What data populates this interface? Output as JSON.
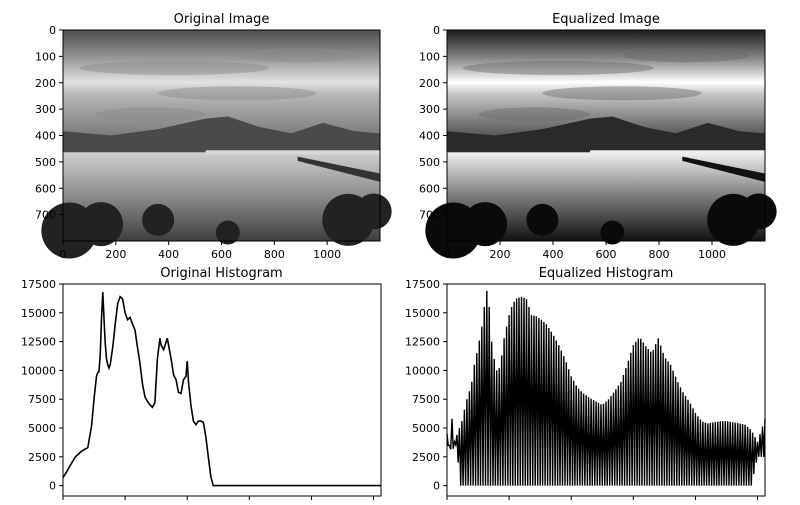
{
  "chart_data": [
    {
      "type": "image",
      "title": "Original Image",
      "xticks": [
        "0",
        "200",
        "400",
        "600",
        "800",
        "1000"
      ],
      "yticks": [
        "0",
        "100",
        "200",
        "300",
        "400",
        "500",
        "600",
        "700"
      ],
      "xlim": [
        0,
        1200
      ],
      "ylim": [
        800,
        0
      ],
      "image_style": "normal"
    },
    {
      "type": "image",
      "title": "Equalized Image",
      "xticks": [
        "0",
        "200",
        "400",
        "600",
        "800",
        "1000"
      ],
      "yticks": [
        "0",
        "100",
        "200",
        "300",
        "400",
        "500",
        "600",
        "700"
      ],
      "xlim": [
        0,
        1200
      ],
      "ylim": [
        800,
        0
      ],
      "image_style": "equalized"
    },
    {
      "type": "line",
      "title": "Original Histogram",
      "yticks": [
        "0",
        "2500",
        "5000",
        "7500",
        "10000",
        "12500",
        "15000",
        "17500"
      ],
      "xlim": [
        0,
        256
      ],
      "ylim": [
        -900,
        17500
      ],
      "x": [
        0,
        3,
        6,
        10,
        15,
        20,
        23,
        25,
        27,
        28,
        29,
        30,
        31,
        32,
        33,
        34,
        35,
        36,
        37,
        38,
        40,
        42,
        44,
        46,
        48,
        50,
        52,
        54,
        56,
        58,
        60,
        62,
        64,
        66,
        68,
        70,
        72,
        74,
        76,
        78,
        79,
        81,
        84,
        87,
        89,
        91,
        93,
        95,
        97,
        99,
        100,
        101,
        103,
        105,
        107,
        109,
        111,
        113,
        115,
        117,
        119,
        121,
        123,
        125,
        127,
        130,
        132,
        133,
        134,
        135,
        136,
        137,
        138,
        140,
        143,
        146,
        150,
        155,
        160,
        170,
        180,
        200,
        220,
        240,
        256
      ],
      "series": [
        {
          "values": [
            700,
            1200,
            1800,
            2500,
            3000,
            3300,
            5200,
            7600,
            9500,
            9800,
            9900,
            11500,
            14500,
            16800,
            14500,
            12400,
            11000,
            10500,
            10200,
            10500,
            12000,
            14000,
            15800,
            16400,
            16200,
            15000,
            14400,
            14600,
            14000,
            13500,
            12000,
            10600,
            8800,
            7700,
            7300,
            7000,
            6800,
            7200,
            11000,
            12800,
            12200,
            11800,
            12800,
            11000,
            9600,
            9200,
            8100,
            8000,
            9200,
            9500,
            10800,
            9000,
            7000,
            5600,
            5300,
            5600,
            5600,
            5500,
            4200,
            2500,
            800,
            0,
            0,
            0,
            0,
            0,
            0,
            0,
            0,
            0,
            0,
            0,
            0,
            0,
            0,
            0,
            0,
            0,
            0,
            0,
            0,
            0,
            0,
            0,
            0
          ]
        }
      ]
    },
    {
      "type": "line",
      "title": "Equalized Histogram",
      "yticks": [
        "0",
        "2500",
        "5000",
        "7500",
        "10000",
        "12500",
        "15000",
        "17500"
      ],
      "xlim": [
        0,
        256
      ],
      "ylim": [
        -900,
        17500
      ],
      "envelope": {
        "x": [
          0,
          2,
          4,
          6,
          8,
          10,
          12,
          14,
          16,
          18,
          20,
          22,
          24,
          26,
          28,
          30,
          32,
          34,
          36,
          38,
          40,
          42,
          44,
          46,
          48,
          50,
          52,
          55,
          60,
          64,
          68,
          72,
          76,
          80,
          85,
          90,
          95,
          100,
          105,
          110,
          115,
          120,
          125,
          130,
          135,
          140,
          145,
          150,
          155,
          160,
          165,
          170,
          175,
          180,
          185,
          190,
          195,
          200,
          205,
          210,
          215,
          220,
          225,
          230,
          235,
          240,
          245,
          250,
          256
        ],
        "peaks": [
          4500,
          3500,
          5800,
          3800,
          4400,
          5000,
          5600,
          6600,
          7500,
          8200,
          9000,
          10500,
          11500,
          12600,
          13800,
          15500,
          16900,
          15500,
          12500,
          11000,
          10000,
          10200,
          11300,
          12800,
          13800,
          14800,
          15500,
          16200,
          16400,
          16200,
          14800,
          14700,
          14400,
          14000,
          13200,
          12200,
          11000,
          9500,
          8500,
          8000,
          7600,
          7300,
          7000,
          7500,
          8200,
          9000,
          10500,
          12200,
          12900,
          12100,
          11500,
          12800,
          11200,
          10500,
          9200,
          8100,
          7300,
          6300,
          5600,
          5400,
          5500,
          5600,
          5600,
          5500,
          5400,
          5300,
          4800,
          3800,
          5800
        ],
        "troughs": [
          4000,
          3000,
          3300,
          3100,
          4000,
          0,
          0,
          0,
          0,
          0,
          0,
          0,
          0,
          0,
          0,
          0,
          0,
          0,
          0,
          0,
          0,
          0,
          0,
          0,
          0,
          0,
          0,
          0,
          0,
          0,
          0,
          0,
          0,
          0,
          0,
          0,
          0,
          0,
          0,
          0,
          0,
          0,
          0,
          0,
          0,
          0,
          0,
          0,
          0,
          0,
          0,
          0,
          0,
          0,
          0,
          0,
          0,
          0,
          0,
          0,
          0,
          0,
          0,
          0,
          0,
          0,
          0,
          2500,
          2500
        ]
      }
    }
  ]
}
